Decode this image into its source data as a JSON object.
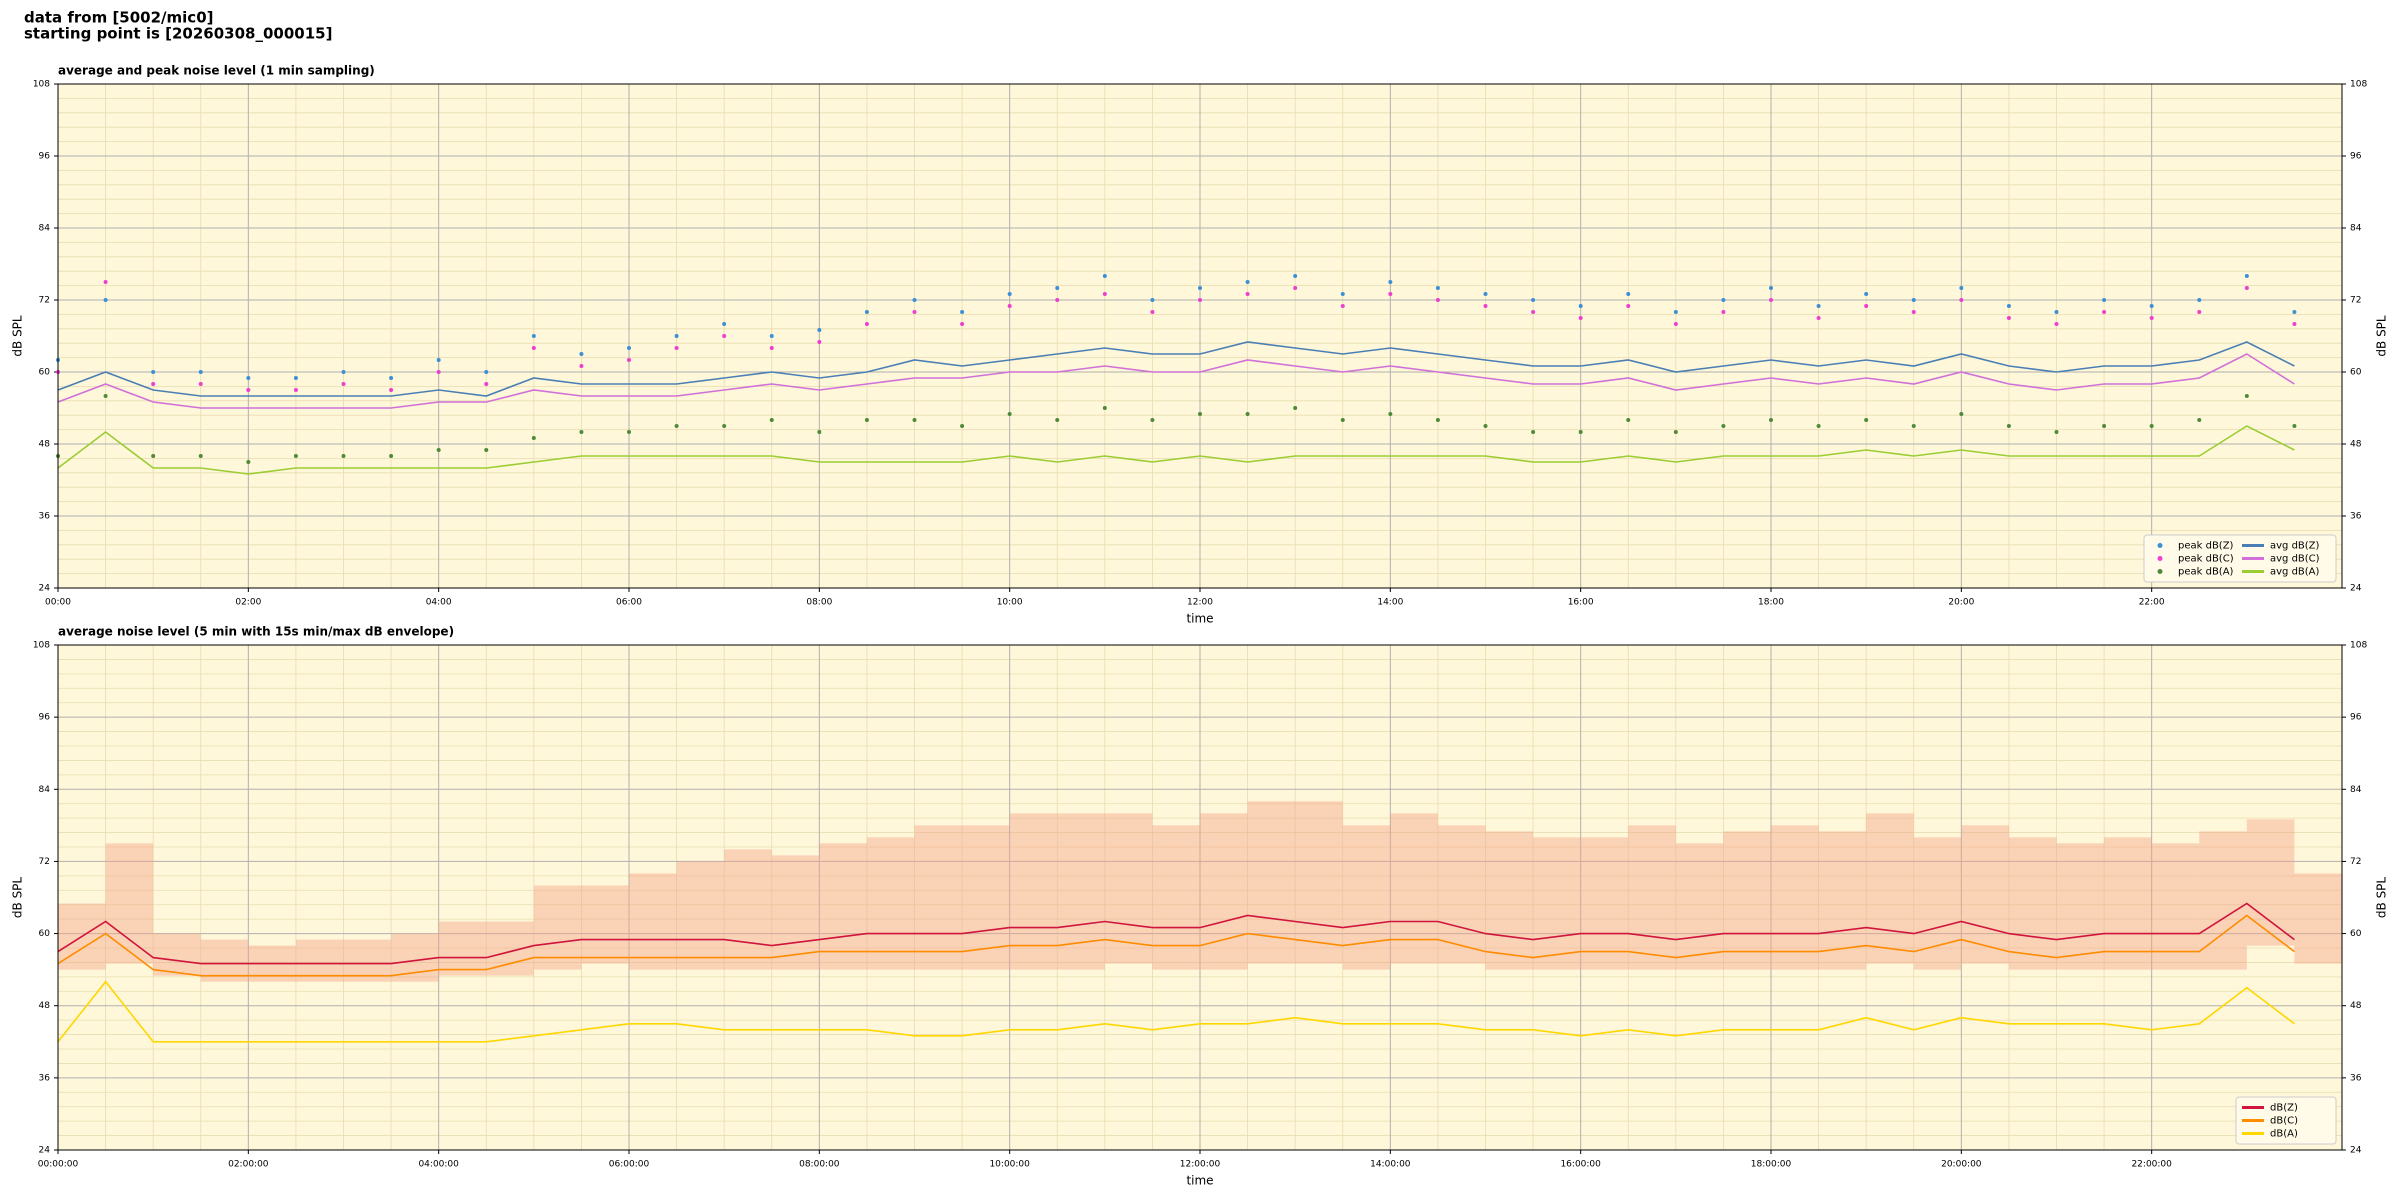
{
  "header": {
    "line1": "data from [5002/mic0]",
    "line2": "starting point is [20260308_000015]"
  },
  "chart_data": [
    {
      "type": "line",
      "title": "average and peak noise level (1 min sampling)",
      "x_label": "time",
      "y_label": "dB SPL",
      "xlim": [
        0,
        24
      ],
      "xticks": [
        {
          "value": 0,
          "label": "00:00"
        },
        {
          "value": 2,
          "label": "02:00"
        },
        {
          "value": 4,
          "label": "04:00"
        },
        {
          "value": 6,
          "label": "06:00"
        },
        {
          "value": 8,
          "label": "08:00"
        },
        {
          "value": 10,
          "label": "10:00"
        },
        {
          "value": 12,
          "label": "12:00"
        },
        {
          "value": 14,
          "label": "14:00"
        },
        {
          "value": 16,
          "label": "16:00"
        },
        {
          "value": 18,
          "label": "18:00"
        },
        {
          "value": 20,
          "label": "20:00"
        },
        {
          "value": 22,
          "label": "22:00"
        }
      ],
      "ylim": [
        24,
        108
      ],
      "yticks": [
        24,
        36,
        48,
        60,
        72,
        84,
        96,
        108
      ],
      "grid": true,
      "background": "#fff7d9",
      "legend": "lower right",
      "legend_columns": 2,
      "x": [
        0,
        0.5,
        1,
        1.5,
        2,
        2.5,
        3,
        3.5,
        4,
        4.5,
        5,
        5.5,
        6,
        6.5,
        7,
        7.5,
        8,
        8.5,
        9,
        9.5,
        10,
        10.5,
        11,
        11.5,
        12,
        12.5,
        13,
        13.5,
        14,
        14.5,
        15,
        15.5,
        16,
        16.5,
        17,
        17.5,
        18,
        18.5,
        19,
        19.5,
        20,
        20.5,
        21,
        21.5,
        22,
        22.5,
        23,
        23.5
      ],
      "series": [
        {
          "name": "peak dB(Z)",
          "mark": "dot",
          "color": "#3d8fd6",
          "values": [
            62,
            72,
            60,
            60,
            59,
            59,
            60,
            59,
            62,
            60,
            66,
            63,
            64,
            66,
            68,
            66,
            67,
            70,
            72,
            70,
            73,
            74,
            76,
            72,
            74,
            75,
            76,
            73,
            75,
            74,
            73,
            72,
            71,
            73,
            70,
            72,
            74,
            71,
            73,
            72,
            74,
            71,
            70,
            72,
            71,
            72,
            76,
            70
          ]
        },
        {
          "name": "peak dB(C)",
          "mark": "dot",
          "color": "#ee3fd0",
          "values": [
            60,
            75,
            58,
            58,
            57,
            57,
            58,
            57,
            60,
            58,
            64,
            61,
            62,
            64,
            66,
            64,
            65,
            68,
            70,
            68,
            71,
            72,
            73,
            70,
            72,
            73,
            74,
            71,
            73,
            72,
            71,
            70,
            69,
            71,
            68,
            70,
            72,
            69,
            71,
            70,
            72,
            69,
            68,
            70,
            69,
            70,
            74,
            68
          ]
        },
        {
          "name": "peak dB(A)",
          "mark": "dot",
          "color": "#4f8a3a",
          "values": [
            46,
            56,
            46,
            46,
            45,
            46,
            46,
            46,
            47,
            47,
            49,
            50,
            50,
            51,
            51,
            52,
            50,
            52,
            52,
            51,
            53,
            52,
            54,
            52,
            53,
            53,
            54,
            52,
            53,
            52,
            51,
            50,
            50,
            52,
            50,
            51,
            52,
            51,
            52,
            51,
            53,
            51,
            50,
            51,
            51,
            52,
            56,
            51
          ]
        },
        {
          "name": "avg dB(Z)",
          "mark": "line",
          "color": "#4a7fb5",
          "values": [
            57,
            60,
            57,
            56,
            56,
            56,
            56,
            56,
            57,
            56,
            59,
            58,
            58,
            58,
            59,
            60,
            59,
            60,
            62,
            61,
            62,
            63,
            64,
            63,
            63,
            65,
            64,
            63,
            64,
            63,
            62,
            61,
            61,
            62,
            60,
            61,
            62,
            61,
            62,
            61,
            63,
            61,
            60,
            61,
            61,
            62,
            65,
            61
          ]
        },
        {
          "name": "avg dB(C)",
          "mark": "line",
          "color": "#d070d8",
          "values": [
            55,
            58,
            55,
            54,
            54,
            54,
            54,
            54,
            55,
            55,
            57,
            56,
            56,
            56,
            57,
            58,
            57,
            58,
            59,
            59,
            60,
            60,
            61,
            60,
            60,
            62,
            61,
            60,
            61,
            60,
            59,
            58,
            58,
            59,
            57,
            58,
            59,
            58,
            59,
            58,
            60,
            58,
            57,
            58,
            58,
            59,
            63,
            58
          ]
        },
        {
          "name": "avg dB(A)",
          "mark": "line",
          "color": "#9acd32",
          "values": [
            44,
            50,
            44,
            44,
            43,
            44,
            44,
            44,
            44,
            44,
            45,
            46,
            46,
            46,
            46,
            46,
            45,
            45,
            45,
            45,
            46,
            45,
            46,
            45,
            46,
            45,
            46,
            46,
            46,
            46,
            46,
            45,
            45,
            46,
            45,
            46,
            46,
            46,
            47,
            46,
            47,
            46,
            46,
            46,
            46,
            46,
            51,
            47
          ]
        }
      ]
    },
    {
      "type": "line",
      "title": "average noise level (5 min with 15s min/max dB envelope)",
      "x_label": "time",
      "y_label": "dB SPL",
      "xlim": [
        0,
        24
      ],
      "xticks": [
        {
          "value": 0,
          "label": "00:00:00"
        },
        {
          "value": 2,
          "label": "02:00:00"
        },
        {
          "value": 4,
          "label": "04:00:00"
        },
        {
          "value": 6,
          "label": "06:00:00"
        },
        {
          "value": 8,
          "label": "08:00:00"
        },
        {
          "value": 10,
          "label": "10:00:00"
        },
        {
          "value": 12,
          "label": "12:00:00"
        },
        {
          "value": 14,
          "label": "14:00:00"
        },
        {
          "value": 16,
          "label": "16:00:00"
        },
        {
          "value": 18,
          "label": "18:00:00"
        },
        {
          "value": 20,
          "label": "20:00:00"
        },
        {
          "value": 22,
          "label": "22:00:00"
        }
      ],
      "ylim": [
        24,
        108
      ],
      "yticks": [
        24,
        36,
        48,
        60,
        72,
        84,
        96,
        108
      ],
      "grid": true,
      "background": "#fff7d9",
      "legend": "lower right",
      "legend_columns": 1,
      "x": [
        0,
        0.5,
        1,
        1.5,
        2,
        2.5,
        3,
        3.5,
        4,
        4.5,
        5,
        5.5,
        6,
        6.5,
        7,
        7.5,
        8,
        8.5,
        9,
        9.5,
        10,
        10.5,
        11,
        11.5,
        12,
        12.5,
        13,
        13.5,
        14,
        14.5,
        15,
        15.5,
        16,
        16.5,
        17,
        17.5,
        18,
        18.5,
        19,
        19.5,
        20,
        20.5,
        21,
        21.5,
        22,
        22.5,
        23,
        23.5
      ],
      "envelope": {
        "color": "#f4a58a",
        "low": [
          54,
          55,
          53,
          52,
          52,
          52,
          52,
          52,
          53,
          53,
          54,
          55,
          54,
          54,
          54,
          54,
          54,
          54,
          54,
          54,
          54,
          54,
          55,
          54,
          54,
          55,
          55,
          54,
          55,
          55,
          54,
          54,
          54,
          54,
          54,
          54,
          54,
          54,
          55,
          54,
          55,
          54,
          54,
          54,
          54,
          54,
          58,
          55
        ],
        "high": [
          65,
          75,
          60,
          59,
          58,
          59,
          59,
          60,
          62,
          62,
          68,
          68,
          70,
          72,
          74,
          73,
          75,
          76,
          78,
          78,
          80,
          80,
          80,
          78,
          80,
          82,
          82,
          78,
          80,
          78,
          77,
          76,
          76,
          78,
          75,
          77,
          78,
          77,
          80,
          76,
          78,
          76,
          75,
          76,
          75,
          77,
          79,
          70
        ]
      },
      "series": [
        {
          "name": "dB(Z)",
          "mark": "line",
          "color": "#d0143c",
          "values": [
            57,
            62,
            56,
            55,
            55,
            55,
            55,
            55,
            56,
            56,
            58,
            59,
            59,
            59,
            59,
            58,
            59,
            60,
            60,
            60,
            61,
            61,
            62,
            61,
            61,
            63,
            62,
            61,
            62,
            62,
            60,
            59,
            60,
            60,
            59,
            60,
            60,
            60,
            61,
            60,
            62,
            60,
            59,
            60,
            60,
            60,
            65,
            59
          ]
        },
        {
          "name": "dB(C)",
          "mark": "line",
          "color": "#ff8c00",
          "values": [
            55,
            60,
            54,
            53,
            53,
            53,
            53,
            53,
            54,
            54,
            56,
            56,
            56,
            56,
            56,
            56,
            57,
            57,
            57,
            57,
            58,
            58,
            59,
            58,
            58,
            60,
            59,
            58,
            59,
            59,
            57,
            56,
            57,
            57,
            56,
            57,
            57,
            57,
            58,
            57,
            59,
            57,
            56,
            57,
            57,
            57,
            63,
            57
          ]
        },
        {
          "name": "dB(A)",
          "mark": "line",
          "color": "#ffd700",
          "values": [
            42,
            52,
            42,
            42,
            42,
            42,
            42,
            42,
            42,
            42,
            43,
            44,
            45,
            45,
            44,
            44,
            44,
            44,
            43,
            43,
            44,
            44,
            45,
            44,
            45,
            45,
            46,
            45,
            45,
            45,
            44,
            44,
            43,
            44,
            43,
            44,
            44,
            44,
            46,
            44,
            46,
            45,
            45,
            45,
            44,
            45,
            51,
            45
          ]
        }
      ]
    }
  ]
}
